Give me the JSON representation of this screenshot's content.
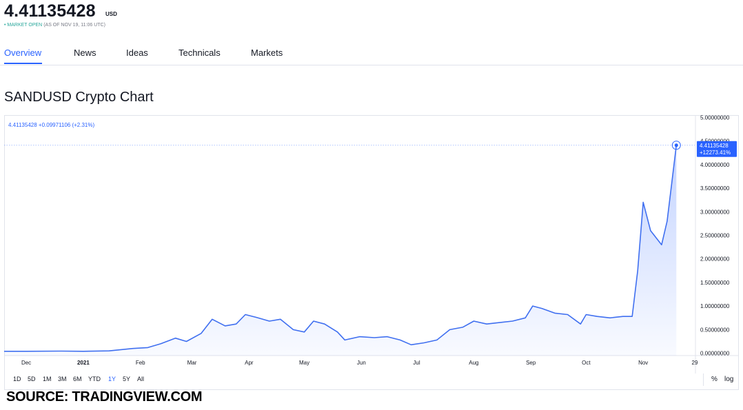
{
  "header": {
    "price": "4.41135428",
    "currency": "USD",
    "status_dot": "•",
    "status_open": "MARKET OPEN",
    "status_time": "(AS OF NOV 19, 11:06 UTC)"
  },
  "tabs": [
    "Overview",
    "News",
    "Ideas",
    "Technicals",
    "Markets"
  ],
  "active_tab": "Overview",
  "heading": "SANDUSD Crypto Chart",
  "legend_line": "4.41135428 +0.09971106 (+2.31%)",
  "ranges": [
    "1D",
    "5D",
    "1M",
    "3M",
    "6M",
    "YTD",
    "1Y",
    "5Y",
    "All"
  ],
  "active_range": "1Y",
  "scale_buttons": {
    "percent": "%",
    "log": "log"
  },
  "source": "SOURCE: TRADINGVIEW.COM",
  "colors": {
    "accent": "#2962ff",
    "line": "#3f6ff0",
    "market_open": "#26a69a"
  },
  "chart_data": {
    "type": "area",
    "ylim": [
      -0.05,
      5.05
    ],
    "y_ticks": [
      "5.00000000",
      "4.50000000",
      "4.00000000",
      "3.50000000",
      "3.00000000",
      "2.50000000",
      "2.00000000",
      "1.50000000",
      "1.00000000",
      "0.50000000",
      "0.00000000"
    ],
    "y_tick_values": [
      5.0,
      4.5,
      4.0,
      3.5,
      3.0,
      2.5,
      2.0,
      1.5,
      1.0,
      0.5,
      0.0
    ],
    "x_ticks": [
      "Dec",
      "2021",
      "Feb",
      "Mar",
      "Apr",
      "May",
      "Jun",
      "Jul",
      "Aug",
      "Sep",
      "Oct",
      "Nov",
      "29"
    ],
    "x_tick_dates": [
      "2020-12-01",
      "2021-01-01",
      "2021-02-01",
      "2021-03-01",
      "2021-04-01",
      "2021-05-01",
      "2021-06-01",
      "2021-07-01",
      "2021-08-01",
      "2021-09-01",
      "2021-10-01",
      "2021-11-01",
      "2021-11-29"
    ],
    "x_domain": [
      "2020-11-19",
      "2021-11-29"
    ],
    "last_price_label": "4.41135428",
    "last_change_label": "+12273.41%",
    "series": [
      {
        "values": [
          [
            "2020-11-19",
            0.04
          ],
          [
            "2020-12-01",
            0.04
          ],
          [
            "2020-12-20",
            0.045
          ],
          [
            "2021-01-01",
            0.04
          ],
          [
            "2021-01-15",
            0.05
          ],
          [
            "2021-01-28",
            0.1
          ],
          [
            "2021-02-05",
            0.12
          ],
          [
            "2021-02-12",
            0.2
          ],
          [
            "2021-02-20",
            0.32
          ],
          [
            "2021-02-26",
            0.25
          ],
          [
            "2021-03-06",
            0.42
          ],
          [
            "2021-03-12",
            0.72
          ],
          [
            "2021-03-19",
            0.58
          ],
          [
            "2021-03-25",
            0.62
          ],
          [
            "2021-03-30",
            0.82
          ],
          [
            "2021-04-05",
            0.76
          ],
          [
            "2021-04-12",
            0.68
          ],
          [
            "2021-04-18",
            0.72
          ],
          [
            "2021-04-25",
            0.5
          ],
          [
            "2021-05-01",
            0.45
          ],
          [
            "2021-05-06",
            0.68
          ],
          [
            "2021-05-12",
            0.62
          ],
          [
            "2021-05-19",
            0.45
          ],
          [
            "2021-05-23",
            0.28
          ],
          [
            "2021-05-31",
            0.35
          ],
          [
            "2021-06-08",
            0.33
          ],
          [
            "2021-06-15",
            0.35
          ],
          [
            "2021-06-22",
            0.28
          ],
          [
            "2021-06-28",
            0.18
          ],
          [
            "2021-07-05",
            0.22
          ],
          [
            "2021-07-12",
            0.28
          ],
          [
            "2021-07-19",
            0.5
          ],
          [
            "2021-07-26",
            0.55
          ],
          [
            "2021-08-01",
            0.68
          ],
          [
            "2021-08-08",
            0.62
          ],
          [
            "2021-08-15",
            0.65
          ],
          [
            "2021-08-22",
            0.68
          ],
          [
            "2021-08-29",
            0.75
          ],
          [
            "2021-09-02",
            1.0
          ],
          [
            "2021-09-07",
            0.95
          ],
          [
            "2021-09-14",
            0.85
          ],
          [
            "2021-09-21",
            0.82
          ],
          [
            "2021-09-28",
            0.62
          ],
          [
            "2021-10-01",
            0.82
          ],
          [
            "2021-10-07",
            0.78
          ],
          [
            "2021-10-14",
            0.75
          ],
          [
            "2021-10-21",
            0.78
          ],
          [
            "2021-10-26",
            0.78
          ],
          [
            "2021-10-29",
            1.75
          ],
          [
            "2021-11-01",
            3.2
          ],
          [
            "2021-11-05",
            2.6
          ],
          [
            "2021-11-11",
            2.3
          ],
          [
            "2021-11-14",
            2.8
          ],
          [
            "2021-11-19",
            4.41
          ]
        ]
      }
    ]
  }
}
